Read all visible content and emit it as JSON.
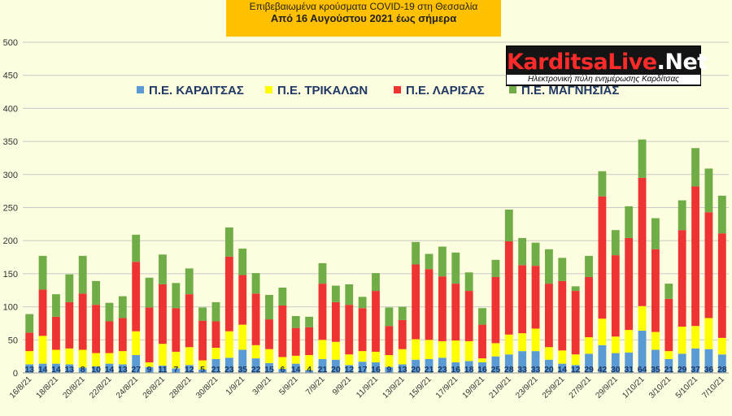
{
  "header": {
    "line1": "Επιβεβαιωμένα κρούσματα COVID-19 στη Θεσσαλία",
    "line2": "Από 16 Αυγούστου 2021 έως σήμερα"
  },
  "logo": {
    "brand_part1": "KarditsaLive",
    "brand_part2": ".Net",
    "tagline": "Ηλεκτρονική πύλη ενημέρωσης Καρδίτσας"
  },
  "colors": {
    "karditsa": "#5b9bd5",
    "trikala": "#ffff00",
    "larisa": "#ee3333",
    "magnisia": "#70ad47",
    "grid": "#c9c9c9",
    "background": "#fdfde0"
  },
  "chart_data": {
    "type": "bar",
    "stacked": true,
    "ylim": [
      0,
      500
    ],
    "yticks": [
      0,
      50,
      100,
      150,
      200,
      250,
      300,
      350,
      400,
      450,
      500
    ],
    "grid": true,
    "legend_position": "top",
    "categories": [
      "16/8/21",
      "17/8/21",
      "18/8/21",
      "19/8/21",
      "20/8/21",
      "21/8/21",
      "22/8/21",
      "23/8/21",
      "24/8/21",
      "25/8/21",
      "26/8/21",
      "27/8/21",
      "28/8/21",
      "29/8/21",
      "30/8/21",
      "31/8/21",
      "1/9/21",
      "2/9/21",
      "3/9/21",
      "4/9/21",
      "5/9/21",
      "6/9/21",
      "7/9/21",
      "8/9/21",
      "9/9/21",
      "10/9/21",
      "11/9/21",
      "12/9/21",
      "13/9/21",
      "14/9/21",
      "15/9/21",
      "16/9/21",
      "17/9/21",
      "18/9/21",
      "19/9/21",
      "20/9/21",
      "21/9/21",
      "22/9/21",
      "23/9/21",
      "24/9/21",
      "25/9/21",
      "26/9/21",
      "27/9/21",
      "28/9/21",
      "29/9/21",
      "30/9/21",
      "1/10/21",
      "2/10/21",
      "3/10/21",
      "4/10/21",
      "5/10/21",
      "6/10/21",
      "7/10/21"
    ],
    "xtick_labels": [
      "16/8/21",
      "18/8/21",
      "20/8/21",
      "22/8/21",
      "24/8/21",
      "26/8/21",
      "28/8/21",
      "30/8/21",
      "1/9/21",
      "3/9/21",
      "5/9/21",
      "7/9/21",
      "9/9/21",
      "11/9/21",
      "13/9/21",
      "15/9/21",
      "17/9/21",
      "19/9/21",
      "21/9/21",
      "23/9/21",
      "25/9/21",
      "27/9/21",
      "29/9/21",
      "1/10/21",
      "3/10/21",
      "5/10/21",
      "7/10/21"
    ],
    "series": [
      {
        "name": "Π.Ε. ΚΑΡΔΙΤΣΑΣ",
        "values": [
          13,
          14,
          14,
          13,
          8,
          10,
          14,
          13,
          27,
          9,
          11,
          7,
          12,
          5,
          21,
          23,
          35,
          22,
          15,
          6,
          14,
          4,
          21,
          20,
          12,
          17,
          16,
          9,
          13,
          20,
          21,
          23,
          16,
          18,
          16,
          25,
          28,
          33,
          33,
          20,
          14,
          12,
          29,
          42,
          30,
          31,
          64,
          35,
          21,
          29,
          37,
          36,
          28
        ]
      },
      {
        "name": "Π.Ε. ΤΡΙΚΑΛΩΝ",
        "values": [
          20,
          42,
          21,
          24,
          27,
          20,
          16,
          20,
          36,
          7,
          33,
          25,
          27,
          14,
          17,
          40,
          38,
          20,
          21,
          18,
          12,
          23,
          29,
          27,
          16,
          16,
          16,
          18,
          23,
          31,
          29,
          25,
          33,
          30,
          6,
          20,
          30,
          27,
          34,
          19,
          20,
          16,
          25,
          40,
          25,
          34,
          37,
          27,
          12,
          41,
          34,
          47,
          25
        ]
      },
      {
        "name": "Π.Ε. ΛΑΡΙΣΑΣ",
        "values": [
          28,
          70,
          50,
          70,
          85,
          73,
          48,
          50,
          105,
          83,
          90,
          66,
          80,
          60,
          40,
          113,
          75,
          78,
          45,
          78,
          42,
          42,
          85,
          60,
          75,
          65,
          92,
          44,
          44,
          113,
          107,
          98,
          86,
          76,
          51,
          100,
          141,
          103,
          95,
          96,
          105,
          96,
          91,
          185,
          123,
          139,
          194,
          125,
          79,
          146,
          211,
          160,
          158
        ]
      },
      {
        "name": "Π.Ε. ΜΑΓΝΗΣΙΑΣ",
        "values": [
          28,
          51,
          34,
          42,
          57,
          36,
          28,
          33,
          41,
          45,
          45,
          38,
          39,
          20,
          29,
          44,
          40,
          31,
          37,
          27,
          18,
          16,
          31,
          25,
          31,
          17,
          27,
          28,
          20,
          34,
          23,
          45,
          47,
          28,
          25,
          26,
          48,
          41,
          35,
          52,
          35,
          7,
          32,
          38,
          38,
          48,
          58,
          47,
          23,
          45,
          58,
          66,
          57
        ]
      }
    ],
    "data_labels_series": "Π.Ε. ΚΑΡΔΙΤΣΑΣ"
  }
}
